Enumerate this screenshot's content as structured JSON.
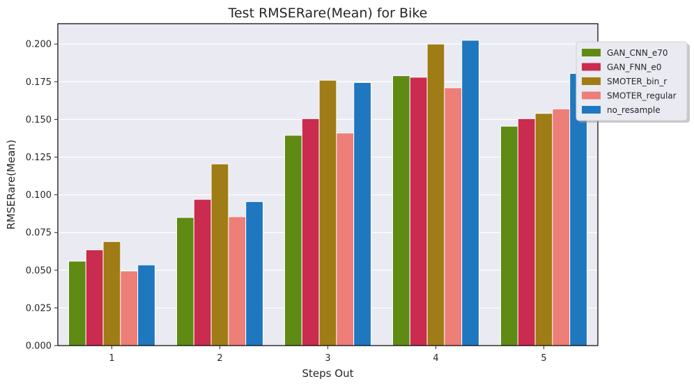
{
  "chart_data": {
    "type": "bar",
    "title": "Test RMSERare(Mean) for Bike",
    "xlabel": "Steps Out",
    "ylabel": "RMSERare(Mean)",
    "categories": [
      "1",
      "2",
      "3",
      "4",
      "5"
    ],
    "ylim": [
      0,
      0.2135
    ],
    "yticks": [
      0.0,
      0.025,
      0.05,
      0.075,
      0.1,
      0.125,
      0.15,
      0.175,
      0.2
    ],
    "ytick_labels": [
      "0.000",
      "0.025",
      "0.050",
      "0.075",
      "0.100",
      "0.125",
      "0.150",
      "0.175",
      "0.200"
    ],
    "grid": true,
    "legend_position": "top-right (outside)",
    "series": [
      {
        "name": "GAN_CNN_e70",
        "color": "#5f8b14",
        "values": [
          0.056,
          0.085,
          0.1395,
          0.179,
          0.1455
        ]
      },
      {
        "name": "GAN_FNN_e0",
        "color": "#c92c4e",
        "values": [
          0.0635,
          0.097,
          0.1505,
          0.178,
          0.1505
        ]
      },
      {
        "name": "SMOTER_bin_r",
        "color": "#a07c16",
        "values": [
          0.069,
          0.1205,
          0.176,
          0.2,
          0.154
        ]
      },
      {
        "name": "SMOTER_regular",
        "color": "#ed7e78",
        "values": [
          0.0495,
          0.0855,
          0.141,
          0.171,
          0.157
        ]
      },
      {
        "name": "no_resample",
        "color": "#1f78bf",
        "values": [
          0.0535,
          0.0955,
          0.1745,
          0.2025,
          0.1805
        ]
      }
    ]
  }
}
